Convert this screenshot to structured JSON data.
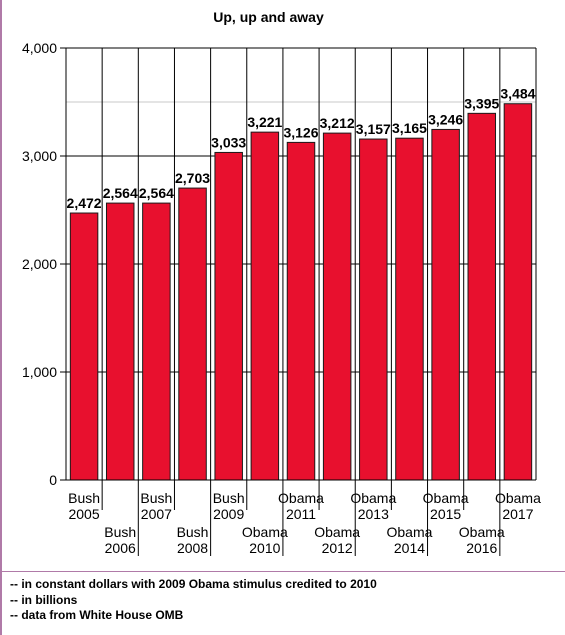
{
  "title": "Up, up and away",
  "notes": [
    "-- in constant dollars with 2009 Obama stimulus credited to 2010",
    "-- in billions",
    "-- data from White House OMB"
  ],
  "colors": {
    "bar": "#e8102e",
    "bar_edge": "#1a1a1a",
    "grid": "#c8c8c8",
    "frame": "#b07aa8"
  },
  "chart_data": {
    "type": "bar",
    "title": "Up, up and away",
    "xlabel": "",
    "ylabel": "",
    "ylim": [
      0,
      4000
    ],
    "yticks": [
      0,
      1000,
      2000,
      3000,
      4000
    ],
    "ytick_labels": [
      "0",
      "1,000",
      "2,000",
      "3,000",
      "4,000"
    ],
    "categories": [
      [
        "Bush",
        "2005"
      ],
      [
        "Bush",
        "2006"
      ],
      [
        "Bush",
        "2007"
      ],
      [
        "Bush",
        "2008"
      ],
      [
        "Bush",
        "2009"
      ],
      [
        "Obama",
        "2010"
      ],
      [
        "Obama",
        "2011"
      ],
      [
        "Obama",
        "2012"
      ],
      [
        "Obama",
        "2013"
      ],
      [
        "Obama",
        "2014"
      ],
      [
        "Obama",
        "2015"
      ],
      [
        "Obama",
        "2016"
      ],
      [
        "Obama",
        "2017"
      ]
    ],
    "values": [
      2472,
      2564,
      2564,
      2703,
      3033,
      3221,
      3126,
      3212,
      3157,
      3165,
      3246,
      3395,
      3484
    ],
    "value_labels": [
      "2,472",
      "2,564",
      "2,564",
      "2,703",
      "3,033",
      "3,221",
      "3,126",
      "3,212",
      "3,157",
      "3,165",
      "3,246",
      "3,395",
      "3,484"
    ],
    "grid": true,
    "legend": "none"
  }
}
